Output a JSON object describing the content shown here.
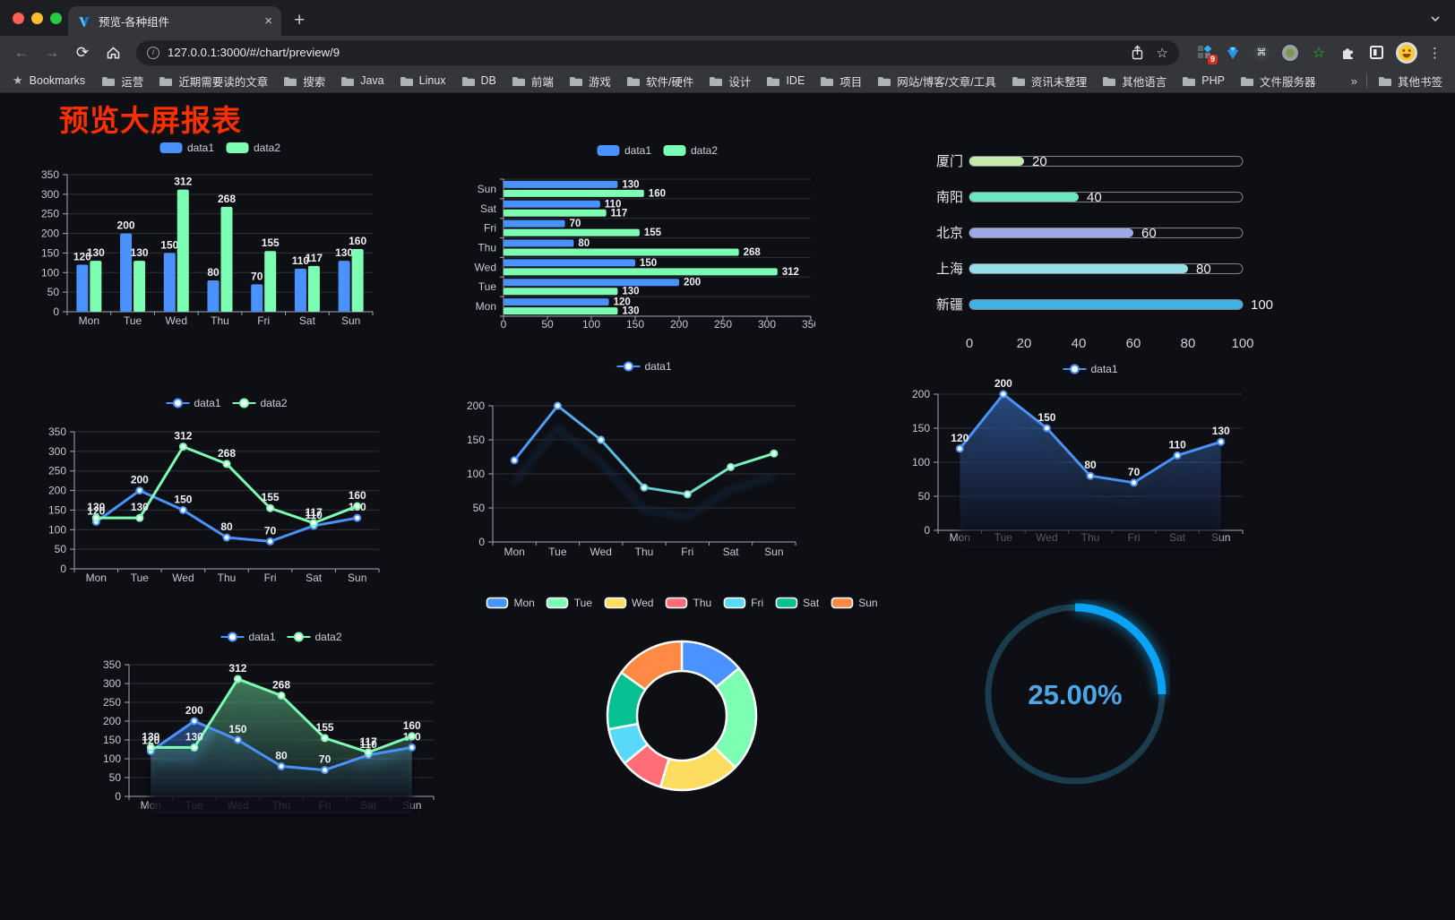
{
  "browser": {
    "tab": {
      "title": "预览-各种组件"
    },
    "url": "127.0.0.1:3000/#/chart/preview/9",
    "traffic_colors": [
      "#ff5f57",
      "#febc2e",
      "#28c840"
    ],
    "glyphs": {
      "close": "×",
      "new_tab": "+",
      "back": "←",
      "forward": "→",
      "reload": "⟳",
      "info": "i",
      "star": "☆",
      "bookmarks_star": "★",
      "cmd": "⌘",
      "green_star": "☆",
      "menu": "⋮",
      "overflow": "»"
    },
    "extension_badge": "9",
    "bookmarks_label": "Bookmarks",
    "bookmarks": [
      "运营",
      "近期需要读的文章",
      "搜索",
      "Java",
      "Linux",
      "DB",
      "前端",
      "游戏",
      "软件/硬件",
      "设计",
      "IDE",
      "项目",
      "网站/博客/文章/工具",
      "资讯未整理",
      "其他语言",
      "PHP",
      "文件服务器"
    ],
    "other_bookmarks": "其他书签"
  },
  "page": {
    "title": "预览大屏报表",
    "title_color": "#ff2f00"
  },
  "chart_data": [
    {
      "id": "bar_grouped",
      "type": "bar",
      "legend_position": "top",
      "grid": true,
      "categories": [
        "Mon",
        "Tue",
        "Wed",
        "Thu",
        "Fri",
        "Sat",
        "Sun"
      ],
      "series": [
        {
          "name": "data1",
          "color": "#4992ff",
          "values": [
            120,
            200,
            150,
            80,
            70,
            110,
            130
          ]
        },
        {
          "name": "data2",
          "color": "#7cffb2",
          "values": [
            130,
            130,
            312,
            268,
            155,
            117,
            160
          ]
        }
      ],
      "ylim": [
        0,
        350
      ],
      "yticks": [
        0,
        50,
        100,
        150,
        200,
        250,
        300,
        350
      ]
    },
    {
      "id": "bar_horizontal",
      "type": "bar",
      "orientation": "horizontal",
      "legend_position": "top",
      "categories": [
        "Mon",
        "Tue",
        "Wed",
        "Thu",
        "Fri",
        "Sat",
        "Sun"
      ],
      "display_order_top_to_bottom": [
        "Sun",
        "Sat",
        "Fri",
        "Thu",
        "Wed",
        "Tue",
        "Mon"
      ],
      "series": [
        {
          "name": "data1",
          "color": "#4992ff",
          "values": [
            120,
            200,
            150,
            80,
            70,
            110,
            130
          ]
        },
        {
          "name": "data2",
          "color": "#7cffb2",
          "values": [
            130,
            130,
            312,
            268,
            155,
            117,
            160
          ]
        }
      ],
      "xlim": [
        0,
        350
      ],
      "xticks": [
        0,
        50,
        100,
        150,
        200,
        250,
        300,
        350
      ]
    },
    {
      "id": "progress_bars",
      "type": "bar",
      "orientation": "progress",
      "items": [
        {
          "label": "厦门",
          "value": 20,
          "color": "#c4ebad"
        },
        {
          "label": "南阳",
          "value": 40,
          "color": "#6be6c1"
        },
        {
          "label": "北京",
          "value": 60,
          "color": "#a0a7e6"
        },
        {
          "label": "上海",
          "value": 80,
          "color": "#96dee8"
        },
        {
          "label": "新疆",
          "value": 100,
          "color": "#3fb1e3"
        }
      ],
      "xlim": [
        0,
        100
      ],
      "xticks": [
        0,
        20,
        40,
        60,
        80,
        100
      ]
    },
    {
      "id": "line_two",
      "type": "line",
      "legend_position": "top",
      "point_labels": true,
      "categories": [
        "Mon",
        "Tue",
        "Wed",
        "Thu",
        "Fri",
        "Sat",
        "Sun"
      ],
      "series": [
        {
          "name": "data1",
          "color": "#4992ff",
          "values": [
            120,
            200,
            150,
            80,
            70,
            110,
            130
          ]
        },
        {
          "name": "data2",
          "color": "#7cffb2",
          "values": [
            130,
            130,
            312,
            268,
            155,
            117,
            160
          ]
        }
      ],
      "ylim": [
        0,
        350
      ],
      "yticks": [
        0,
        50,
        100,
        150,
        200,
        250,
        300,
        350
      ]
    },
    {
      "id": "line_gradient",
      "type": "line",
      "legend_position": "top",
      "point_labels": false,
      "shadow": true,
      "categories": [
        "Mon",
        "Tue",
        "Wed",
        "Thu",
        "Fri",
        "Sat",
        "Sun"
      ],
      "series": [
        {
          "name": "data1",
          "gradient": [
            "#4992ff",
            "#7cffb2"
          ],
          "values": [
            120,
            200,
            150,
            80,
            70,
            110,
            130
          ]
        }
      ],
      "ylim": [
        0,
        200
      ],
      "yticks": [
        0,
        50,
        100,
        150,
        200
      ]
    },
    {
      "id": "area_single",
      "type": "area",
      "legend_position": "top",
      "point_labels": true,
      "shadow": true,
      "categories": [
        "Mon",
        "Tue",
        "Wed",
        "Thu",
        "Fri",
        "Sat",
        "Sun"
      ],
      "series": [
        {
          "name": "data1",
          "color": "#4992ff",
          "values": [
            120,
            200,
            150,
            80,
            70,
            110,
            130
          ]
        }
      ],
      "ylim": [
        0,
        200
      ],
      "yticks": [
        0,
        50,
        100,
        150,
        200
      ]
    },
    {
      "id": "area_two",
      "type": "area",
      "legend_position": "top",
      "point_labels": true,
      "shadow": true,
      "categories": [
        "Mon",
        "Tue",
        "Wed",
        "Thu",
        "Fri",
        "Sat",
        "Sun"
      ],
      "series": [
        {
          "name": "data1",
          "color": "#4992ff",
          "values": [
            120,
            200,
            150,
            80,
            70,
            110,
            130
          ]
        },
        {
          "name": "data2",
          "color": "#7cffb2",
          "values": [
            130,
            130,
            312,
            268,
            155,
            117,
            160
          ]
        }
      ],
      "ylim": [
        0,
        350
      ],
      "yticks": [
        0,
        50,
        100,
        150,
        200,
        250,
        300,
        350
      ]
    },
    {
      "id": "donut",
      "type": "pie",
      "shape": "donut",
      "legend_position": "top",
      "categories": [
        "Mon",
        "Tue",
        "Wed",
        "Thu",
        "Fri",
        "Sat",
        "Sun"
      ],
      "values": [
        120,
        200,
        150,
        80,
        70,
        110,
        130
      ],
      "colors": [
        "#4992ff",
        "#7cffb2",
        "#fddd60",
        "#ff6e76",
        "#58d9f9",
        "#05c091",
        "#ff8a45"
      ],
      "border_color": "#ffffff"
    },
    {
      "id": "ring_progress",
      "type": "gauge",
      "value": 25,
      "label": "25.00%",
      "color": "#0aa2f5",
      "track_color": "#1a3d4d",
      "text_color": "#4da6e8"
    }
  ]
}
